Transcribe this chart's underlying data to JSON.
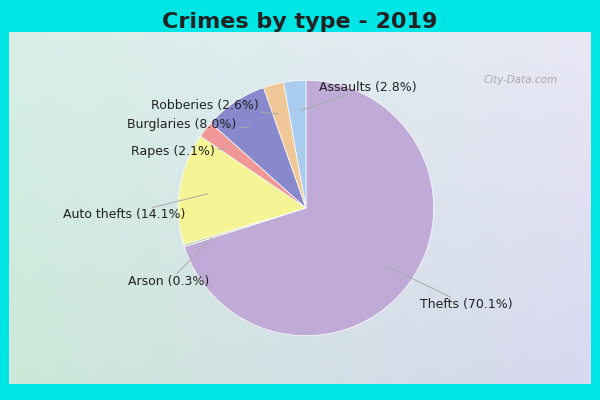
{
  "title": "Crimes by type - 2019",
  "labels": [
    "Thefts",
    "Auto thefts",
    "Burglaries",
    "Assaults",
    "Robberies",
    "Rapes",
    "Arson"
  ],
  "percentages": [
    70.1,
    14.1,
    8.0,
    2.8,
    2.6,
    2.1,
    0.3
  ],
  "colors": [
    "#c0aad8",
    "#f5f595",
    "#8888cc",
    "#aaccee",
    "#f0c898",
    "#f09898",
    "#c0d8b0"
  ],
  "background_outer": "#00e5e5",
  "label_texts": [
    "Thefts (70.1%)",
    "Auto thefts (14.1%)",
    "Burglaries (8.0%)",
    "Assaults (2.8%)",
    "Robberies (2.6%)",
    "Rapes (2.1%)",
    "Arson (0.3%)"
  ],
  "title_fontsize": 16,
  "label_fontsize": 9
}
